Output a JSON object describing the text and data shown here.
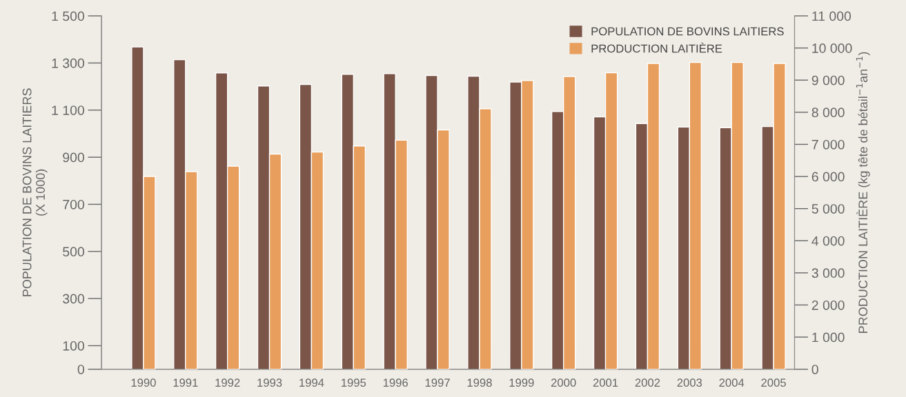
{
  "chart_data": {
    "type": "bar",
    "categories": [
      "1990",
      "1991",
      "1992",
      "1993",
      "1994",
      "1995",
      "1996",
      "1997",
      "1998",
      "1999",
      "2000",
      "2001",
      "2002",
      "2003",
      "2004",
      "2005"
    ],
    "series": [
      {
        "name": "POPULATION DE BOVINS LAITIERS",
        "color": "#7a5548",
        "values": [
          1368,
          1314,
          1258,
          1202,
          1209,
          1252,
          1255,
          1247,
          1244,
          1219,
          1094,
          1071,
          1043,
          1028,
          1025,
          1030
        ]
      },
      {
        "name": "PRODUCTION LAITIÈRE",
        "color": "#e89e5c",
        "axis": "y2",
        "values": [
          6000,
          6150,
          6320,
          6700,
          6760,
          6950,
          7130,
          7450,
          8110,
          8990,
          9110,
          9230,
          9520,
          9550,
          9550,
          9520
        ]
      }
    ],
    "ylabel": "POPULATION DE BOVINS LAITIERS\n(X 1000)",
    "y2label": "PRODUCTION LAITIÈRE (kg tête de bétail$^{−1}$an$^{−1}$)",
    "ylim": [
      0,
      1500
    ],
    "yticks": [
      0,
      100,
      300,
      500,
      700,
      900,
      {
        "value": 1100,
        "label": "1 100"
      },
      {
        "value": 1300,
        "label": "1 300"
      },
      {
        "value": 1500,
        "label": "1 500"
      }
    ],
    "y2lim": [
      0,
      11000
    ],
    "y2ticks": [
      0,
      {
        "value": 1000,
        "label": "1 000"
      },
      {
        "value": 2000,
        "label": "2 000"
      },
      {
        "value": 3000,
        "label": "3 000"
      },
      {
        "value": 4000,
        "label": "4 000"
      },
      {
        "value": 5000,
        "label": "5 000"
      },
      {
        "value": 6000,
        "label": "6 000"
      },
      {
        "value": 7000,
        "label": "7 000"
      },
      {
        "value": 8000,
        "label": "8 000"
      },
      {
        "value": 9000,
        "label": "9 000"
      },
      {
        "value": 10000,
        "label": "10 000"
      },
      {
        "value": 11000,
        "label": "11 000"
      }
    ],
    "legend": "top right",
    "grid": false
  }
}
